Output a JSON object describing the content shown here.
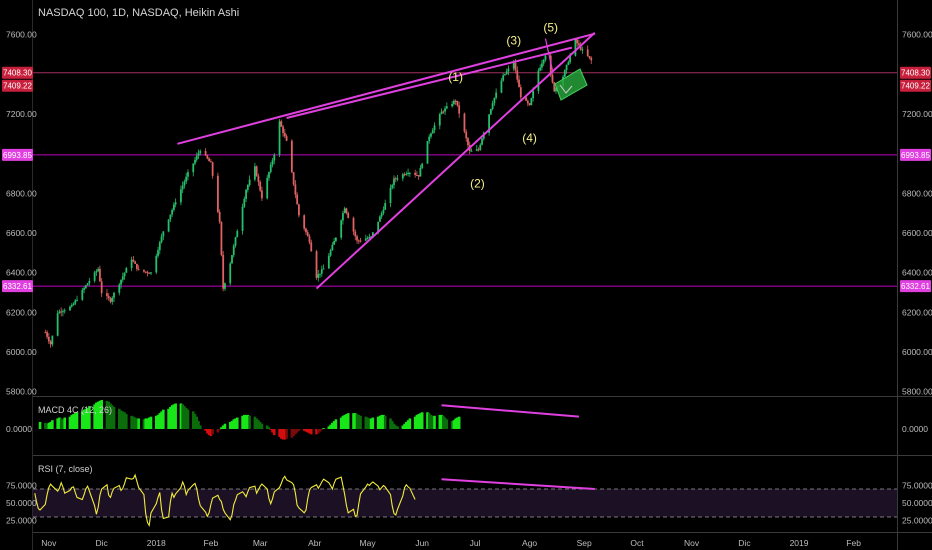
{
  "header": {
    "title": "NASDAQ 100, 1D, NASDAQ, Heikin Ashi"
  },
  "colors": {
    "background": "#000000",
    "grid": "#1c1c1c",
    "axis_text": "#bdbdbd",
    "candle_up": "#26c06b",
    "candle_down": "#e06262",
    "trend_line": "#e040e0",
    "level_line": "#c000c0",
    "level_tag": "#e040e0",
    "wave_label": "#f5f08a",
    "macd_up": "#19e619",
    "macd_dark": "#0b6d0b",
    "macd_down": "#d40d0d",
    "rsi_line": "#f2ec3b",
    "rsi_band": "#1c1024",
    "target_box": "#27a13a"
  },
  "chart_data": [
    {
      "type": "candlestick",
      "title": "NASDAQ 100, 1D, NASDAQ, Heikin Ashi",
      "x_ticks": [
        "Nov",
        "Dic",
        "2018",
        "Feb",
        "Mar",
        "Abr",
        "May",
        "Jun",
        "Jul",
        "Ago",
        "Sep",
        "Oct",
        "Nov",
        "Dic",
        "2019",
        "Feb"
      ],
      "y_ticks": [
        "7600.00",
        "7200.00",
        "6800.00",
        "6600.00",
        "6400.00",
        "6200.00",
        "6000.00",
        "5800.00"
      ],
      "ylim": [
        5780,
        7730
      ],
      "grid": false,
      "price_path": [
        [
          "2017-10-30",
          6100
        ],
        [
          "2017-11-02",
          6040
        ],
        [
          "2017-11-06",
          6200
        ],
        [
          "2017-11-14",
          6230
        ],
        [
          "2017-11-24",
          6360
        ],
        [
          "2017-11-29",
          6420
        ],
        [
          "2017-12-01",
          6300
        ],
        [
          "2017-12-06",
          6260
        ],
        [
          "2017-12-18",
          6470
        ],
        [
          "2017-12-22",
          6410
        ],
        [
          "2017-12-29",
          6400
        ],
        [
          "2018-01-05",
          6610
        ],
        [
          "2018-01-12",
          6760
        ],
        [
          "2018-01-19",
          6900
        ],
        [
          "2018-01-26",
          7020
        ],
        [
          "2018-02-01",
          6950
        ],
        [
          "2018-02-06",
          6650
        ],
        [
          "2018-02-08",
          6320
        ],
        [
          "2018-02-12",
          6450
        ],
        [
          "2018-02-21",
          6820
        ],
        [
          "2018-02-26",
          6930
        ],
        [
          "2018-03-02",
          6780
        ],
        [
          "2018-03-09",
          7000
        ],
        [
          "2018-03-12",
          7160
        ],
        [
          "2018-03-16",
          7060
        ],
        [
          "2018-03-23",
          6690
        ],
        [
          "2018-03-29",
          6560
        ],
        [
          "2018-04-02",
          6380
        ],
        [
          "2018-04-06",
          6420
        ],
        [
          "2018-04-13",
          6580
        ],
        [
          "2018-04-18",
          6730
        ],
        [
          "2018-04-25",
          6560
        ],
        [
          "2018-05-03",
          6580
        ],
        [
          "2018-05-09",
          6700
        ],
        [
          "2018-05-16",
          6870
        ],
        [
          "2018-05-24",
          6910
        ],
        [
          "2018-05-30",
          6890
        ],
        [
          "2018-06-05",
          7090
        ],
        [
          "2018-06-12",
          7210
        ],
        [
          "2018-06-20",
          7270
        ],
        [
          "2018-06-28",
          7010
        ],
        [
          "2018-07-03",
          7020
        ],
        [
          "2018-07-11",
          7260
        ],
        [
          "2018-07-17",
          7390
        ],
        [
          "2018-07-23",
          7460
        ],
        [
          "2018-07-27",
          7290
        ],
        [
          "2018-08-01",
          7240
        ],
        [
          "2018-08-06",
          7420
        ],
        [
          "2018-08-10",
          7500
        ],
        [
          "2018-08-15",
          7320
        ],
        [
          "2018-08-20",
          7390
        ],
        [
          "2018-08-27",
          7570
        ],
        [
          "2018-08-30",
          7530
        ],
        [
          "2018-09-05",
          7470
        ]
      ],
      "horizontal_levels": [
        6993.85,
        6332.61,
        7408.3
      ],
      "price_tags": [
        "7408.30",
        "7409.22",
        "6993.85",
        "6332.61"
      ],
      "wave_labels": [
        "(1)",
        "(2)",
        "(3)",
        "(4)",
        "(5)"
      ],
      "wave_points": [
        {
          "label": "(1)",
          "date": "2018-06-20",
          "price": 7305
        },
        {
          "label": "(2)",
          "date": "2018-06-29",
          "price": 6920
        },
        {
          "label": "(3)",
          "date": "2018-07-23",
          "price": 7500
        },
        {
          "label": "(4)",
          "date": "2018-08-01",
          "price": 7180
        },
        {
          "label": "(5)",
          "date": "2018-08-13",
          "price": 7565
        }
      ],
      "trend_lines": [
        {
          "from": [
            "2018-01-13",
            7050
          ],
          "to": [
            "2018-09-07",
            7605
          ]
        },
        {
          "from": [
            "2018-03-16",
            7180
          ],
          "to": [
            "2018-08-25",
            7535
          ]
        },
        {
          "from": [
            "2018-04-02",
            6320
          ],
          "to": [
            "2018-09-07",
            7610
          ]
        },
        {
          "from": [
            "2018-08-10",
            7580
          ],
          "to": [
            "2018-08-14",
            7420
          ]
        }
      ]
    },
    {
      "type": "histogram",
      "title": "MACD 4C (12, 26)",
      "y_ticks": [
        "0.0000"
      ],
      "series": [
        {
          "name": "MACD 4C",
          "values": [
            8,
            7,
            6,
            7,
            8,
            10,
            12,
            13,
            12,
            11,
            13,
            14,
            16,
            17,
            18,
            19,
            20,
            22,
            23,
            24,
            26,
            28,
            30,
            31,
            32,
            33,
            32,
            31,
            29,
            27,
            25,
            23,
            21,
            20,
            19,
            17,
            15,
            14,
            13,
            12,
            12,
            11,
            12,
            12,
            13,
            14,
            15,
            16,
            18,
            20,
            22,
            23,
            25,
            27,
            28,
            29,
            29,
            28,
            26,
            24,
            22,
            20,
            17,
            14,
            9,
            4,
            -2,
            -5,
            -7,
            -8,
            -6,
            -4,
            -1,
            2,
            4,
            6,
            8,
            9,
            11,
            12,
            13,
            15,
            16,
            16,
            16,
            15,
            14,
            12,
            10,
            8,
            6,
            4,
            2,
            -1,
            -4,
            -7,
            -9,
            -11,
            -12,
            -12,
            -11,
            -10,
            -8,
            -6,
            -4,
            -2,
            -2,
            -3,
            -4,
            -5,
            -6,
            -6,
            -5,
            -3,
            -1,
            1,
            3,
            5,
            7,
            9,
            11,
            13,
            15,
            16,
            17,
            18,
            18,
            18,
            17,
            16,
            15,
            14,
            13,
            12,
            12,
            13,
            14,
            15,
            16,
            16,
            15,
            12,
            9,
            6,
            4,
            3,
            4,
            6,
            8,
            10,
            12,
            14,
            16,
            17,
            18,
            19,
            19,
            18,
            16,
            15,
            15,
            16,
            16,
            15,
            13,
            11,
            9,
            10,
            12,
            13,
            14
          ]
        }
      ],
      "trend_lines": [
        {
          "from": [
            "2018-06-12",
            27
          ],
          "to": [
            "2018-08-29",
            14
          ]
        }
      ]
    },
    {
      "type": "line",
      "title": "RSI (7, close)",
      "y_ticks": [
        "75.0000",
        "50.0000",
        "25.0000"
      ],
      "ylim": [
        16,
        96
      ],
      "bands": [
        30,
        70
      ],
      "series": [
        {
          "name": "RSI",
          "values": [
            64,
            52,
            42,
            40,
            48,
            62,
            72,
            77,
            74,
            67,
            71,
            79,
            73,
            64,
            68,
            72,
            73,
            65,
            58,
            55,
            62,
            70,
            74,
            67,
            46,
            34,
            44,
            61,
            70,
            76,
            61,
            58,
            66,
            71,
            75,
            68,
            71,
            78,
            86,
            84,
            85,
            90,
            81,
            72,
            62,
            35,
            22,
            18,
            36,
            49,
            58,
            65,
            40,
            28,
            30,
            52,
            64,
            58,
            63,
            72,
            80,
            74,
            62,
            68,
            76,
            78,
            70,
            56,
            46,
            37,
            31,
            36,
            48,
            57,
            61,
            55,
            52,
            41,
            36,
            26,
            33,
            48,
            54,
            62,
            66,
            63,
            59,
            66,
            72,
            74,
            64,
            69,
            74,
            77,
            70,
            56,
            49,
            56,
            66,
            72,
            78,
            85,
            88,
            83,
            79,
            76,
            64,
            47,
            43,
            36,
            40,
            56,
            68,
            72,
            76,
            71,
            75,
            80,
            84,
            79,
            75,
            70,
            78,
            84,
            87,
            75,
            62,
            46,
            36,
            41,
            31,
            32,
            49,
            63,
            73,
            77,
            75,
            78,
            80,
            74,
            69,
            72,
            75,
            73,
            62,
            46,
            35,
            33,
            41,
            60,
            72,
            76,
            73,
            71,
            55
          ]
        }
      ],
      "trend_lines": [
        {
          "from": [
            "2018-06-12",
            84
          ],
          "to": [
            "2018-09-07",
            70
          ]
        }
      ]
    }
  ]
}
